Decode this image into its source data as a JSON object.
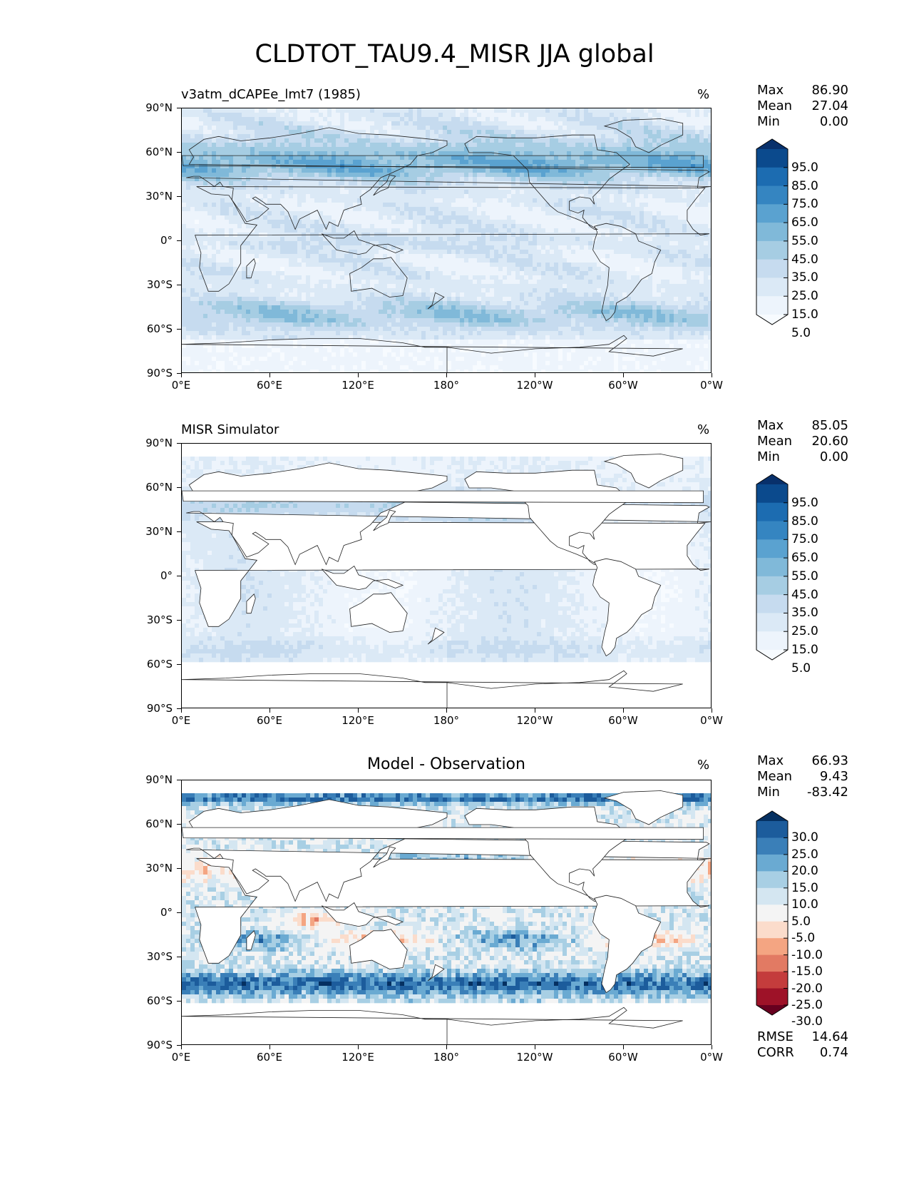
{
  "title": "CLDTOT_TAU9.4_MISR JJA global",
  "chart_data": [
    {
      "type": "heatmap",
      "panel": "test",
      "title": "v3atm_dCAPEe_lmt7 (1985)",
      "units": "%",
      "stats": {
        "max_label": "Max",
        "max": "86.90",
        "mean_label": "Mean",
        "mean": "27.04",
        "min_label": "Min",
        "min": "0.00"
      },
      "colorbar": {
        "labels": [
          "95.0",
          "85.0",
          "75.0",
          "65.0",
          "55.0",
          "45.0",
          "35.0",
          "25.0",
          "15.0",
          "5.0"
        ],
        "colors": [
          "#08306b",
          "#0b4a8d",
          "#1c6cb1",
          "#3585c1",
          "#5aa2d0",
          "#80b9d9",
          "#a6cde3",
          "#c6dbef",
          "#dbe9f6",
          "#edf4fc",
          "#f7fbff"
        ]
      },
      "lat_ticks": [
        "90°N",
        "60°N",
        "30°N",
        "0°",
        "30°S",
        "60°S",
        "90°S"
      ],
      "lon_ticks": [
        "0°E",
        "60°E",
        "120°E",
        "180°",
        "120°W",
        "60°W",
        "0°W"
      ]
    },
    {
      "type": "heatmap",
      "panel": "reference",
      "title": "MISR Simulator",
      "units": "%",
      "stats": {
        "max_label": "Max",
        "max": "85.05",
        "mean_label": "Mean",
        "mean": "20.60",
        "min_label": "Min",
        "min": "0.00"
      },
      "colorbar": {
        "labels": [
          "95.0",
          "85.0",
          "75.0",
          "65.0",
          "55.0",
          "45.0",
          "35.0",
          "25.0",
          "15.0",
          "5.0"
        ],
        "colors": [
          "#08306b",
          "#0b4a8d",
          "#1c6cb1",
          "#3585c1",
          "#5aa2d0",
          "#80b9d9",
          "#a6cde3",
          "#c6dbef",
          "#dbe9f6",
          "#edf4fc",
          "#f7fbff"
        ]
      },
      "lat_ticks": [
        "90°N",
        "60°N",
        "30°N",
        "0°",
        "30°S",
        "60°S",
        "90°S"
      ],
      "lon_ticks": [
        "0°E",
        "60°E",
        "120°E",
        "180°",
        "120°W",
        "60°W",
        "0°W"
      ]
    },
    {
      "type": "heatmap",
      "panel": "difference",
      "title": "Model - Observation",
      "units": "%",
      "stats": {
        "max_label": "Max",
        "max": "66.93",
        "mean_label": "Mean",
        "mean": "9.43",
        "min_label": "Min",
        "min": "-83.42"
      },
      "metrics": {
        "rmse_label": "RMSE",
        "rmse": "14.64",
        "corr_label": "CORR",
        "corr": "0.74"
      },
      "colorbar": {
        "labels": [
          "30.0",
          "25.0",
          "20.0",
          "15.0",
          "10.0",
          "5.0",
          "-5.0",
          "-10.0",
          "-15.0",
          "-20.0",
          "-25.0",
          "-30.0"
        ],
        "colors": [
          "#053061",
          "#1c5c9c",
          "#3a7fb8",
          "#6aaad2",
          "#a8cfe4",
          "#d4e6f1",
          "#f4f4f4",
          "#fbdccb",
          "#f4a582",
          "#e27a63",
          "#c43c3c",
          "#9e1228",
          "#67001f"
        ]
      },
      "lat_ticks": [
        "90°N",
        "60°N",
        "30°N",
        "0°",
        "30°S",
        "60°S",
        "90°S"
      ],
      "lon_ticks": [
        "0°E",
        "60°E",
        "120°E",
        "180°",
        "120°W",
        "60°W",
        "0°W"
      ]
    }
  ]
}
